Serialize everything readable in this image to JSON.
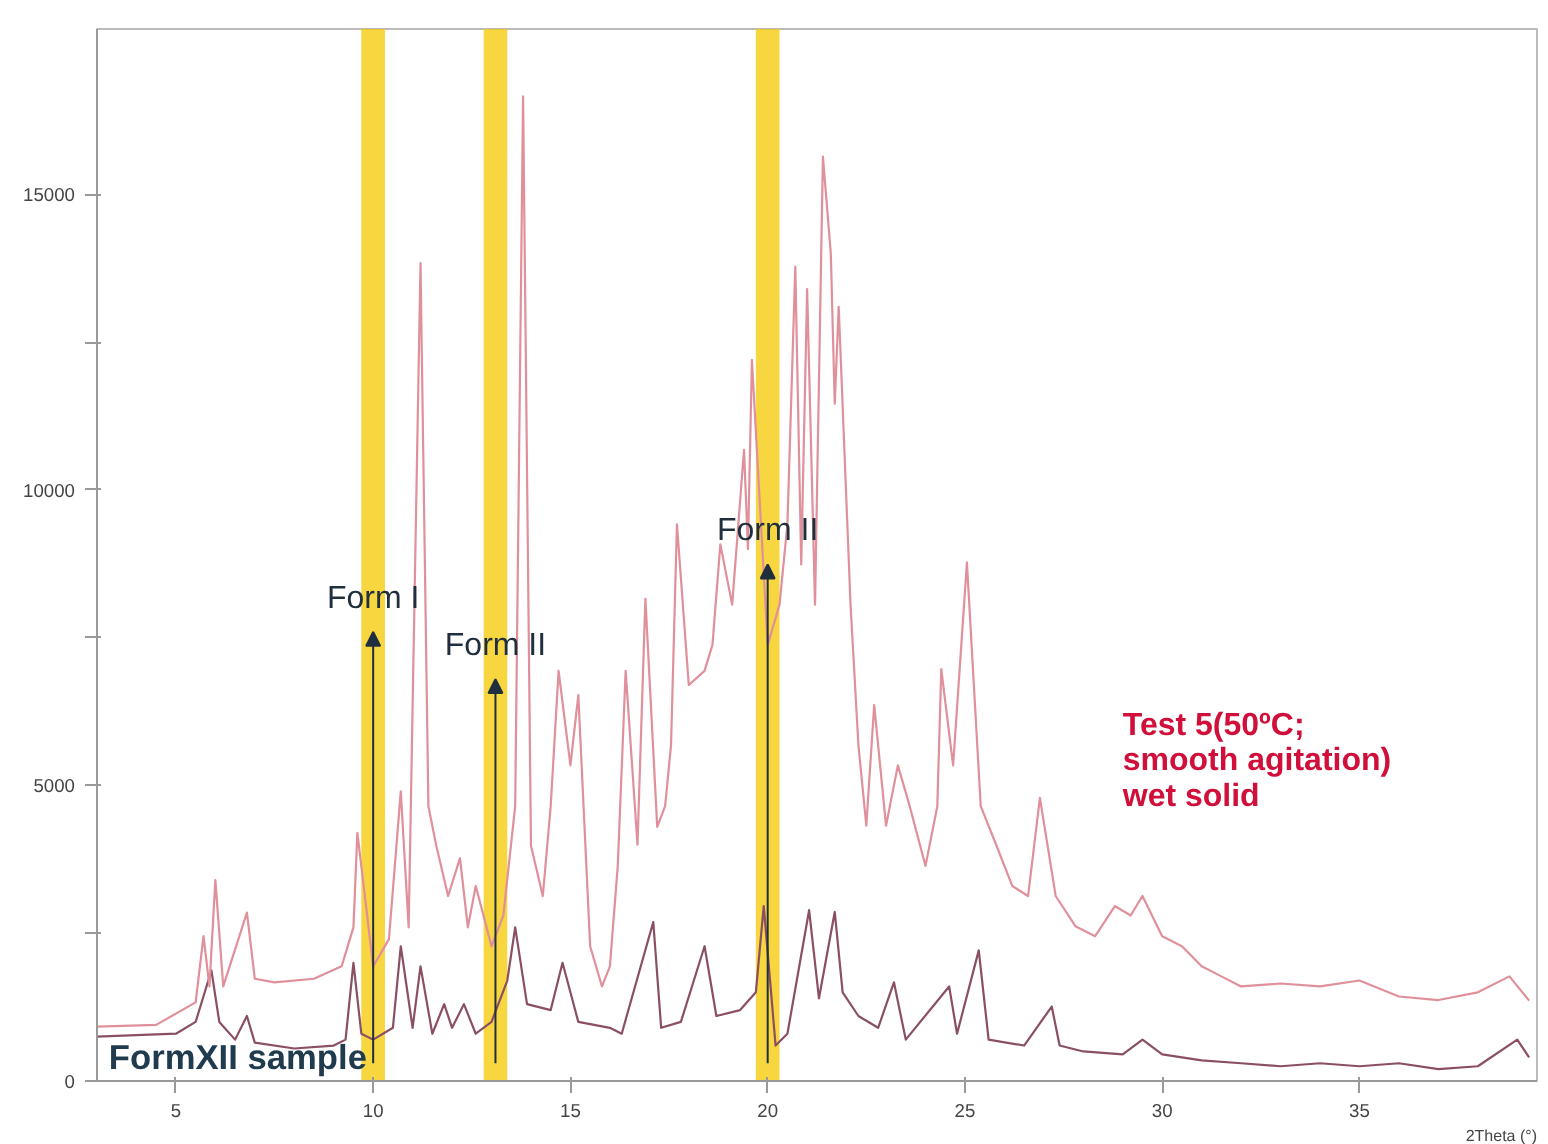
{
  "chart_data": {
    "type": "line",
    "xlabel": "2Theta (°)",
    "xlim": [
      3,
      39.5
    ],
    "ylim": [
      0,
      17800
    ],
    "xticks": [
      5,
      10,
      15,
      20,
      25,
      30,
      35
    ],
    "yticks": [
      0,
      {
        "value": 2500,
        "label": null
      },
      5000,
      {
        "value": 7500,
        "label": null
      },
      10000,
      {
        "value": 12500,
        "label": null
      },
      15000
    ],
    "grid": false,
    "series": [
      {
        "name": "FormXII sample",
        "color": "#8a4f63",
        "x": [
          3,
          5,
          5.5,
          5.9,
          6.1,
          6.5,
          6.8,
          7,
          8,
          9,
          9.3,
          9.5,
          9.7,
          10,
          10.5,
          10.7,
          11,
          11.2,
          11.5,
          11.8,
          12,
          12.3,
          12.6,
          13,
          13.4,
          13.6,
          13.9,
          14.5,
          14.8,
          15.2,
          16,
          16.3,
          17.1,
          17.3,
          17.8,
          18.4,
          18.7,
          19.3,
          19.7,
          19.9,
          20.2,
          20.5,
          21.05,
          21.3,
          21.7,
          21.9,
          22.3,
          22.8,
          23.2,
          23.5,
          24.6,
          24.8,
          25.35,
          25.6,
          26.5,
          27.2,
          27.4,
          28,
          29,
          29.5,
          30,
          31,
          32,
          33,
          34,
          35,
          36,
          37,
          38,
          39,
          39.3
        ],
        "values": [
          750,
          800,
          1000,
          1870,
          1000,
          700,
          1100,
          650,
          550,
          600,
          700,
          2000,
          800,
          700,
          900,
          2280,
          900,
          1940,
          800,
          1300,
          900,
          1300,
          800,
          1000,
          1700,
          2600,
          1300,
          1200,
          2000,
          1000,
          900,
          800,
          2690,
          900,
          1000,
          2280,
          1100,
          1200,
          1500,
          2960,
          600,
          800,
          2890,
          1400,
          2860,
          1500,
          1100,
          900,
          1670,
          700,
          1600,
          800,
          2210,
          700,
          600,
          1260,
          600,
          500,
          450,
          700,
          450,
          350,
          300,
          250,
          300,
          250,
          300,
          200,
          250,
          700,
          400
        ]
      },
      {
        "name": "Test 5(50ºC; smooth agitation) wet solid",
        "color": "#e0909a",
        "x": [
          3,
          4.5,
          5.5,
          5.7,
          5.85,
          6,
          6.2,
          6.8,
          7,
          7.5,
          8.5,
          9.2,
          9.5,
          9.6,
          10,
          10.4,
          10.7,
          10.9,
          11.2,
          11.4,
          11.6,
          11.9,
          12.2,
          12.4,
          12.6,
          13,
          13.3,
          13.6,
          13.8,
          14,
          14.3,
          14.5,
          14.7,
          15,
          15.2,
          15.5,
          15.8,
          16,
          16.2,
          16.4,
          16.7,
          16.9,
          17.2,
          17.4,
          17.55,
          17.7,
          18,
          18.4,
          18.6,
          18.8,
          19.1,
          19.4,
          19.5,
          19.6,
          20,
          20.3,
          20.5,
          20.7,
          20.85,
          21,
          21.2,
          21.4,
          21.6,
          21.7,
          21.8,
          22.1,
          22.3,
          22.5,
          22.7,
          23,
          23.3,
          23.6,
          24,
          24.3,
          24.4,
          24.7,
          25.05,
          25.4,
          25.8,
          26.2,
          26.6,
          26.9,
          27.3,
          27.8,
          28.3,
          28.8,
          29.2,
          29.5,
          30,
          30.5,
          31,
          31.5,
          32,
          33,
          34,
          35,
          36,
          37,
          38,
          38.8,
          39.3
        ],
        "values": [
          920,
          950,
          1330,
          2450,
          1600,
          3400,
          1600,
          2850,
          1730,
          1670,
          1730,
          1940,
          2600,
          4200,
          1940,
          2400,
          4900,
          2600,
          13840,
          4650,
          3980,
          3130,
          3770,
          2600,
          3300,
          2280,
          2800,
          4650,
          16660,
          3980,
          3130,
          4650,
          6940,
          5340,
          6530,
          2280,
          1600,
          1940,
          3640,
          6940,
          4000,
          8160,
          4300,
          4650,
          5680,
          9420,
          6700,
          6940,
          7380,
          9080,
          8060,
          10680,
          9000,
          12200,
          7380,
          8060,
          9420,
          13780,
          8740,
          13400,
          8060,
          15640,
          14000,
          11460,
          13100,
          8060,
          5680,
          4320,
          6360,
          4320,
          5340,
          4650,
          3640,
          4650,
          6970,
          5340,
          8770,
          4650,
          3980,
          3300,
          3130,
          4790,
          3130,
          2620,
          2450,
          2960,
          2800,
          3130,
          2450,
          2280,
          1940,
          1770,
          1600,
          1650,
          1600,
          1700,
          1430,
          1370,
          1500,
          1770,
          1360
        ]
      }
    ],
    "bands": [
      {
        "axis": "x",
        "from": 9.7,
        "to": 10.3,
        "color": "#f5c800",
        "label": "Form I"
      },
      {
        "axis": "x",
        "from": 12.8,
        "to": 13.4,
        "color": "#f5c800",
        "label": "Form II"
      },
      {
        "axis": "x",
        "from": 19.7,
        "to": 20.3,
        "color": "#f5c800",
        "label": "Form II"
      }
    ]
  }
}
